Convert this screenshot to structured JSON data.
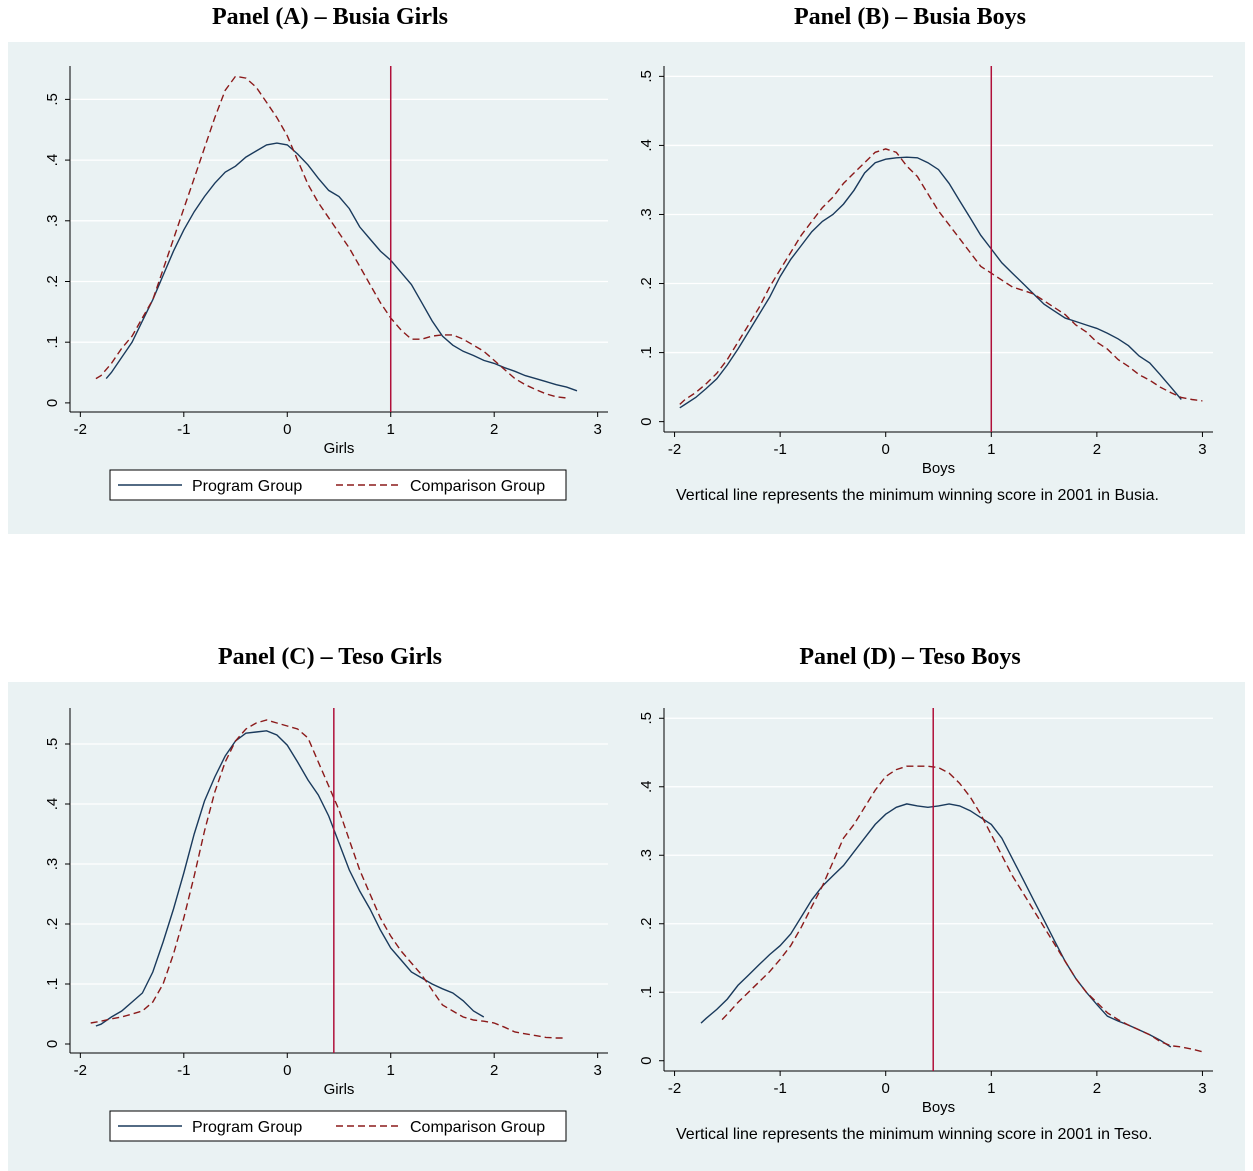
{
  "colors": {
    "background": "#eaf2f3",
    "program": "#1a3a5c",
    "comparison": "#8b1a1a",
    "vline": "#b0103a",
    "grid": "#ffffff"
  },
  "legend": {
    "program": "Program Group",
    "comparison": "Comparison Group"
  },
  "chart_data": [
    {
      "type": "line",
      "title": "Panel (A) – Busia Girls",
      "xlabel": "Girls",
      "ylabel": "",
      "xlim": [
        -2.1,
        3.1
      ],
      "ylim": [
        -0.015,
        0.555
      ],
      "xticks": [
        "-2",
        "-1",
        "0",
        "1",
        "2",
        "3"
      ],
      "yticks": [
        "0",
        ".1",
        ".2",
        ".3",
        ".4",
        ".5"
      ],
      "vline": 1,
      "grid": true,
      "legend": "bottom",
      "note": "",
      "series": [
        {
          "name": "Program Group",
          "x": [
            -1.75,
            -1.7,
            -1.6,
            -1.5,
            -1.4,
            -1.3,
            -1.2,
            -1.1,
            -1.0,
            -0.9,
            -0.8,
            -0.7,
            -0.6,
            -0.5,
            -0.4,
            -0.3,
            -0.2,
            -0.1,
            0.0,
            0.1,
            0.2,
            0.3,
            0.4,
            0.5,
            0.6,
            0.7,
            0.8,
            0.9,
            1.0,
            1.1,
            1.2,
            1.3,
            1.4,
            1.5,
            1.6,
            1.7,
            1.8,
            1.9,
            2.0,
            2.1,
            2.2,
            2.3,
            2.4,
            2.5,
            2.6,
            2.7,
            2.8
          ],
          "y": [
            0.04,
            0.05,
            0.075,
            0.1,
            0.135,
            0.17,
            0.21,
            0.25,
            0.285,
            0.315,
            0.34,
            0.362,
            0.38,
            0.39,
            0.405,
            0.415,
            0.425,
            0.428,
            0.425,
            0.41,
            0.392,
            0.37,
            0.35,
            0.34,
            0.32,
            0.29,
            0.27,
            0.25,
            0.235,
            0.215,
            0.195,
            0.165,
            0.135,
            0.11,
            0.095,
            0.085,
            0.078,
            0.07,
            0.065,
            0.058,
            0.052,
            0.045,
            0.04,
            0.035,
            0.03,
            0.026,
            0.02
          ]
        },
        {
          "name": "Comparison Group",
          "x": [
            -1.85,
            -1.8,
            -1.7,
            -1.6,
            -1.5,
            -1.4,
            -1.3,
            -1.2,
            -1.1,
            -1.0,
            -0.9,
            -0.8,
            -0.7,
            -0.6,
            -0.5,
            -0.4,
            -0.3,
            -0.2,
            -0.1,
            0.0,
            0.1,
            0.2,
            0.3,
            0.4,
            0.5,
            0.6,
            0.7,
            0.8,
            0.9,
            1.0,
            1.1,
            1.2,
            1.3,
            1.4,
            1.5,
            1.6,
            1.7,
            1.8,
            1.9,
            2.0,
            2.1,
            2.2,
            2.3,
            2.4,
            2.5,
            2.6,
            2.7
          ],
          "y": [
            0.04,
            0.045,
            0.065,
            0.09,
            0.11,
            0.14,
            0.17,
            0.22,
            0.27,
            0.32,
            0.37,
            0.42,
            0.47,
            0.515,
            0.538,
            0.535,
            0.52,
            0.495,
            0.47,
            0.44,
            0.4,
            0.36,
            0.33,
            0.305,
            0.28,
            0.255,
            0.225,
            0.195,
            0.165,
            0.14,
            0.12,
            0.105,
            0.105,
            0.11,
            0.112,
            0.112,
            0.105,
            0.095,
            0.085,
            0.07,
            0.055,
            0.04,
            0.03,
            0.022,
            0.015,
            0.01,
            0.008
          ]
        }
      ]
    },
    {
      "type": "line",
      "title": "Panel (B) – Busia Boys",
      "xlabel": "Boys",
      "ylabel": "",
      "xlim": [
        -2.1,
        3.1
      ],
      "ylim": [
        -0.015,
        0.515
      ],
      "xticks": [
        "-2",
        "-1",
        "0",
        "1",
        "2",
        "3"
      ],
      "yticks": [
        "0",
        ".1",
        ".2",
        ".3",
        ".4",
        ".5"
      ],
      "vline": 1,
      "grid": true,
      "legend": "none",
      "note": "Vertical line represents the minimum winning score in 2001 in Busia.",
      "series": [
        {
          "name": "Program Group",
          "x": [
            -1.95,
            -1.9,
            -1.8,
            -1.7,
            -1.6,
            -1.5,
            -1.4,
            -1.3,
            -1.2,
            -1.1,
            -1.0,
            -0.9,
            -0.8,
            -0.7,
            -0.6,
            -0.5,
            -0.4,
            -0.3,
            -0.2,
            -0.1,
            0.0,
            0.1,
            0.2,
            0.3,
            0.4,
            0.5,
            0.6,
            0.7,
            0.8,
            0.9,
            1.0,
            1.1,
            1.2,
            1.3,
            1.4,
            1.5,
            1.6,
            1.7,
            1.8,
            1.9,
            2.0,
            2.1,
            2.2,
            2.3,
            2.4,
            2.5,
            2.6,
            2.7,
            2.8
          ],
          "y": [
            0.02,
            0.025,
            0.035,
            0.048,
            0.062,
            0.082,
            0.105,
            0.13,
            0.155,
            0.18,
            0.21,
            0.235,
            0.255,
            0.275,
            0.29,
            0.3,
            0.315,
            0.335,
            0.36,
            0.375,
            0.38,
            0.382,
            0.383,
            0.382,
            0.375,
            0.365,
            0.345,
            0.32,
            0.295,
            0.27,
            0.25,
            0.23,
            0.215,
            0.2,
            0.185,
            0.17,
            0.16,
            0.15,
            0.145,
            0.14,
            0.135,
            0.128,
            0.12,
            0.11,
            0.095,
            0.085,
            0.068,
            0.05,
            0.032
          ]
        },
        {
          "name": "Comparison Group",
          "x": [
            -1.95,
            -1.9,
            -1.8,
            -1.7,
            -1.6,
            -1.5,
            -1.4,
            -1.3,
            -1.2,
            -1.1,
            -1.0,
            -0.9,
            -0.8,
            -0.7,
            -0.6,
            -0.5,
            -0.4,
            -0.3,
            -0.2,
            -0.1,
            0.0,
            0.1,
            0.2,
            0.3,
            0.4,
            0.5,
            0.6,
            0.7,
            0.8,
            0.9,
            1.0,
            1.1,
            1.2,
            1.3,
            1.4,
            1.5,
            1.6,
            1.7,
            1.8,
            1.9,
            2.0,
            2.1,
            2.2,
            2.3,
            2.4,
            2.5,
            2.6,
            2.7,
            2.8,
            2.9,
            3.0
          ],
          "y": [
            0.025,
            0.032,
            0.042,
            0.055,
            0.07,
            0.09,
            0.115,
            0.14,
            0.165,
            0.195,
            0.22,
            0.245,
            0.27,
            0.29,
            0.31,
            0.325,
            0.345,
            0.36,
            0.375,
            0.39,
            0.395,
            0.39,
            0.37,
            0.355,
            0.33,
            0.305,
            0.285,
            0.265,
            0.245,
            0.225,
            0.215,
            0.205,
            0.195,
            0.19,
            0.185,
            0.175,
            0.165,
            0.155,
            0.14,
            0.13,
            0.115,
            0.105,
            0.09,
            0.08,
            0.068,
            0.06,
            0.05,
            0.042,
            0.035,
            0.032,
            0.03
          ]
        }
      ]
    },
    {
      "type": "line",
      "title": "Panel (C) – Teso Girls",
      "xlabel": "Girls",
      "ylabel": "",
      "xlim": [
        -2.1,
        3.1
      ],
      "ylim": [
        -0.015,
        0.56
      ],
      "xticks": [
        "-2",
        "-1",
        "0",
        "1",
        "2",
        "3"
      ],
      "yticks": [
        "0",
        ".1",
        ".2",
        ".3",
        ".4",
        ".5"
      ],
      "vline": 0.45,
      "grid": true,
      "legend": "bottom",
      "note": "",
      "series": [
        {
          "name": "Program Group",
          "x": [
            -1.85,
            -1.8,
            -1.7,
            -1.6,
            -1.5,
            -1.4,
            -1.3,
            -1.2,
            -1.1,
            -1.0,
            -0.9,
            -0.8,
            -0.7,
            -0.6,
            -0.5,
            -0.4,
            -0.3,
            -0.2,
            -0.1,
            0.0,
            0.1,
            0.2,
            0.3,
            0.4,
            0.5,
            0.6,
            0.7,
            0.8,
            0.9,
            1.0,
            1.1,
            1.2,
            1.3,
            1.4,
            1.5,
            1.6,
            1.7,
            1.8,
            1.9
          ],
          "y": [
            0.03,
            0.033,
            0.045,
            0.055,
            0.07,
            0.085,
            0.12,
            0.17,
            0.225,
            0.285,
            0.35,
            0.405,
            0.445,
            0.48,
            0.505,
            0.518,
            0.52,
            0.522,
            0.515,
            0.498,
            0.47,
            0.44,
            0.415,
            0.38,
            0.335,
            0.29,
            0.255,
            0.225,
            0.19,
            0.16,
            0.14,
            0.12,
            0.11,
            0.1,
            0.092,
            0.085,
            0.072,
            0.055,
            0.045
          ]
        },
        {
          "name": "Comparison Group",
          "x": [
            -1.9,
            -1.8,
            -1.7,
            -1.6,
            -1.5,
            -1.4,
            -1.3,
            -1.2,
            -1.1,
            -1.0,
            -0.9,
            -0.8,
            -0.7,
            -0.6,
            -0.5,
            -0.4,
            -0.3,
            -0.2,
            -0.1,
            0.0,
            0.1,
            0.2,
            0.3,
            0.4,
            0.5,
            0.6,
            0.7,
            0.8,
            0.9,
            1.0,
            1.1,
            1.2,
            1.3,
            1.4,
            1.5,
            1.6,
            1.7,
            1.8,
            1.9,
            2.0,
            2.1,
            2.2,
            2.3,
            2.4,
            2.5,
            2.6,
            2.7
          ],
          "y": [
            0.035,
            0.038,
            0.042,
            0.045,
            0.05,
            0.055,
            0.07,
            0.1,
            0.15,
            0.21,
            0.28,
            0.355,
            0.42,
            0.47,
            0.505,
            0.525,
            0.535,
            0.54,
            0.535,
            0.53,
            0.525,
            0.51,
            0.47,
            0.43,
            0.39,
            0.34,
            0.29,
            0.25,
            0.21,
            0.18,
            0.155,
            0.135,
            0.115,
            0.09,
            0.065,
            0.055,
            0.045,
            0.04,
            0.038,
            0.035,
            0.028,
            0.02,
            0.017,
            0.014,
            0.011,
            0.01,
            0.01
          ]
        }
      ]
    },
    {
      "type": "line",
      "title": "Panel (D) – Teso Boys",
      "xlabel": "Boys",
      "ylabel": "",
      "xlim": [
        -2.1,
        3.1
      ],
      "ylim": [
        -0.015,
        0.515
      ],
      "xticks": [
        "-2",
        "-1",
        "0",
        "1",
        "2",
        "3"
      ],
      "yticks": [
        "0",
        ".1",
        ".2",
        ".3",
        ".4",
        ".5"
      ],
      "vline": 0.45,
      "grid": true,
      "legend": "none",
      "note": "Vertical line represents the minimum winning score in 2001 in Teso.",
      "series": [
        {
          "name": "Program Group",
          "x": [
            -1.75,
            -1.7,
            -1.6,
            -1.5,
            -1.4,
            -1.3,
            -1.2,
            -1.1,
            -1.0,
            -0.9,
            -0.8,
            -0.7,
            -0.6,
            -0.5,
            -0.4,
            -0.3,
            -0.2,
            -0.1,
            0.0,
            0.1,
            0.2,
            0.3,
            0.4,
            0.5,
            0.6,
            0.7,
            0.8,
            0.9,
            1.0,
            1.1,
            1.2,
            1.3,
            1.4,
            1.5,
            1.6,
            1.7,
            1.8,
            1.9,
            2.0,
            2.1,
            2.2,
            2.3,
            2.4,
            2.5,
            2.6,
            2.7
          ],
          "y": [
            0.055,
            0.062,
            0.075,
            0.09,
            0.11,
            0.125,
            0.14,
            0.155,
            0.168,
            0.185,
            0.21,
            0.235,
            0.255,
            0.27,
            0.285,
            0.305,
            0.325,
            0.345,
            0.36,
            0.37,
            0.375,
            0.372,
            0.37,
            0.372,
            0.375,
            0.372,
            0.365,
            0.355,
            0.345,
            0.325,
            0.295,
            0.265,
            0.235,
            0.205,
            0.175,
            0.145,
            0.12,
            0.1,
            0.082,
            0.065,
            0.058,
            0.052,
            0.045,
            0.038,
            0.03,
            0.02
          ]
        },
        {
          "name": "Comparison Group",
          "x": [
            -1.55,
            -1.5,
            -1.4,
            -1.3,
            -1.2,
            -1.1,
            -1.0,
            -0.9,
            -0.8,
            -0.7,
            -0.6,
            -0.5,
            -0.4,
            -0.3,
            -0.2,
            -0.1,
            0.0,
            0.1,
            0.2,
            0.3,
            0.4,
            0.5,
            0.6,
            0.7,
            0.8,
            0.9,
            1.0,
            1.1,
            1.2,
            1.3,
            1.4,
            1.5,
            1.6,
            1.7,
            1.8,
            1.9,
            2.0,
            2.1,
            2.2,
            2.3,
            2.4,
            2.5,
            2.6,
            2.7,
            2.8,
            2.9,
            3.0
          ],
          "y": [
            0.06,
            0.068,
            0.085,
            0.1,
            0.115,
            0.13,
            0.148,
            0.168,
            0.195,
            0.225,
            0.255,
            0.29,
            0.325,
            0.345,
            0.37,
            0.395,
            0.415,
            0.425,
            0.43,
            0.43,
            0.43,
            0.428,
            0.42,
            0.405,
            0.385,
            0.36,
            0.33,
            0.3,
            0.27,
            0.245,
            0.22,
            0.195,
            0.17,
            0.145,
            0.12,
            0.1,
            0.085,
            0.07,
            0.06,
            0.052,
            0.045,
            0.038,
            0.028,
            0.022,
            0.02,
            0.017,
            0.013
          ]
        }
      ]
    }
  ]
}
